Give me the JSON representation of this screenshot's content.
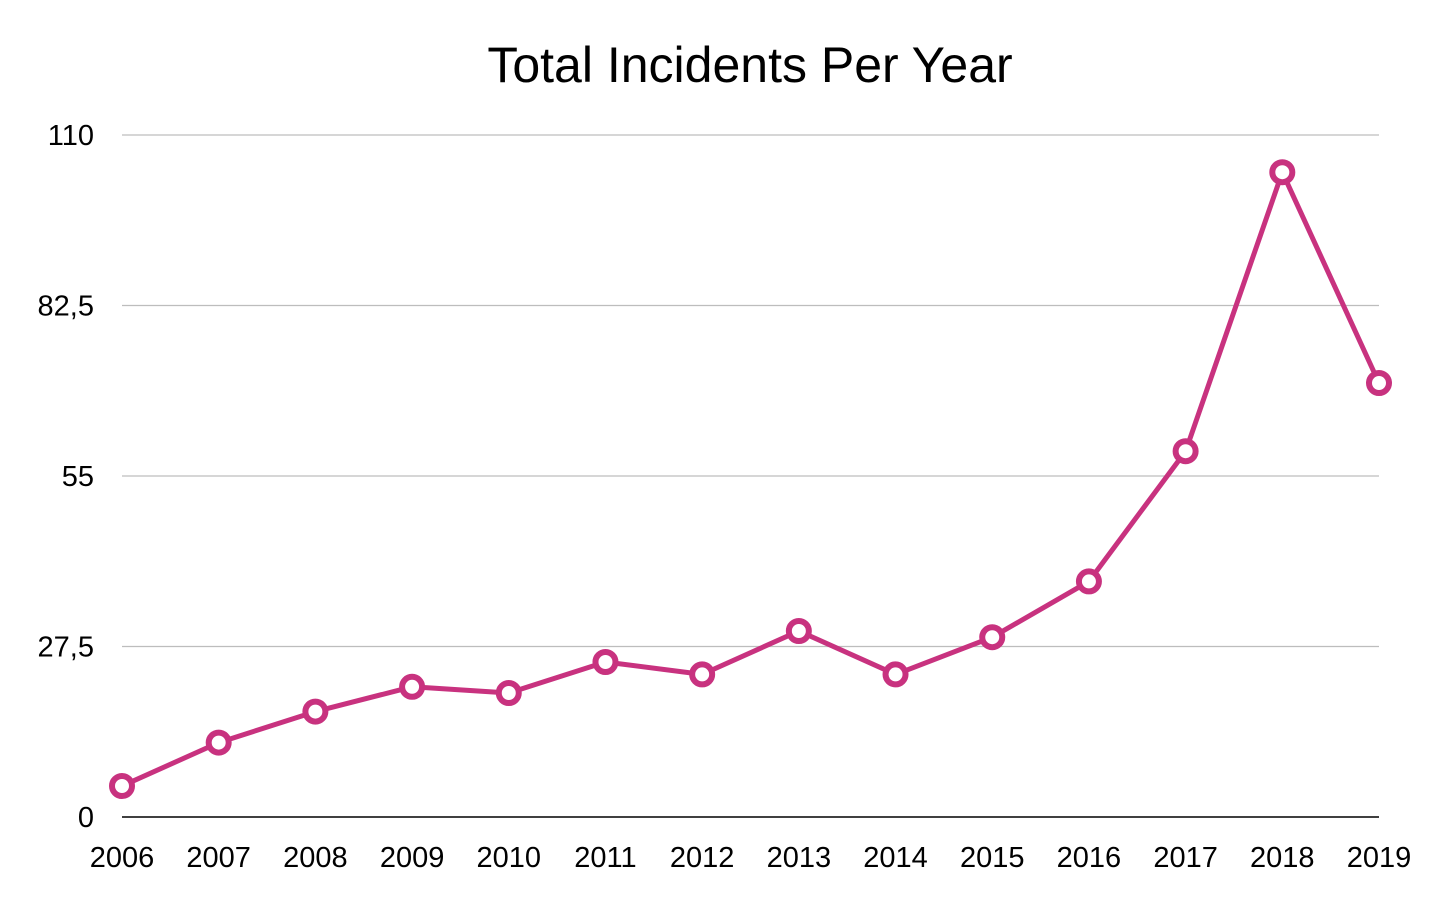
{
  "chart_data": {
    "type": "line",
    "title": "Total Incidents Per Year",
    "xlabel": "",
    "ylabel": "",
    "categories": [
      "2006",
      "2007",
      "2008",
      "2009",
      "2010",
      "2011",
      "2012",
      "2013",
      "2014",
      "2015",
      "2016",
      "2017",
      "2018",
      "2019"
    ],
    "series": [
      {
        "values": [
          5,
          12,
          17,
          21,
          20,
          25,
          23,
          30,
          23,
          29,
          38,
          59,
          104,
          70
        ]
      }
    ],
    "y_ticks": [
      "0",
      "27,5",
      "55",
      "82,5",
      "110"
    ],
    "ylim": [
      0,
      110
    ],
    "grid": true,
    "legend": "none",
    "colors": {
      "line": "#c8327f",
      "grid": "#bdbdbd",
      "marker_fill": "#ffffff"
    }
  }
}
